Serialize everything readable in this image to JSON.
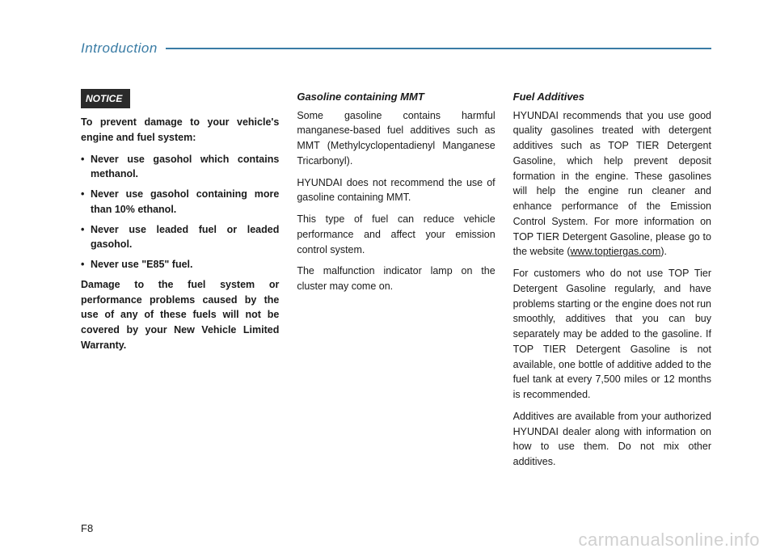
{
  "header": {
    "section_title": "Introduction"
  },
  "col1": {
    "notice_label": "NOTICE",
    "intro": "To prevent damage to your vehicle's engine and fuel system:",
    "bullets": [
      "Never use gasohol which contains methanol.",
      "Never use gasohol containing more than 10% ethanol.",
      "Never use leaded fuel or leaded gasohol.",
      "Never use \"E85\" fuel."
    ],
    "closing": "Damage to the fuel system or performance problems caused by the use of any of these fuels will not be covered by your New Vehicle Limited Warranty."
  },
  "col2": {
    "heading": "Gasoline containing MMT",
    "p1": "Some gasoline contains harmful manganese-based fuel additives such as MMT (Methylcyclopentadienyl Manganese Tricarbonyl).",
    "p2": "HYUNDAI does not recommend the use of gasoline containing MMT.",
    "p3": "This type of fuel can reduce vehicle performance  and affect your emission control system.",
    "p4": "The malfunction indicator lamp on the cluster may come on."
  },
  "col3": {
    "heading": "Fuel Additives",
    "p1_a": "HYUNDAI recommends that you use good quality gasolines treated with detergent additives such as TOP TIER Detergent Gasoline, which help prevent deposit formation in the engine. These gasolines will help the engine run cleaner and enhance performance of the Emission Control System. For more information on TOP TIER Detergent Gasoline, please go to the website (",
    "p1_link": "www.toptiergas.com",
    "p1_b": ").",
    "p2": "For customers who do not use TOP Tier Detergent Gasoline regularly, and have problems starting or the engine does not run smoothly, additives that you can buy separately may be added to the gasoline. If TOP TIER Detergent Gasoline is not available, one bottle of additive added to the fuel tank at every 7,500 miles or 12 months is recommended.",
    "p3": "Additives are available from your authorized HYUNDAI dealer along with information on how to use them. Do not mix other additives."
  },
  "page_number": "F8",
  "watermark": "carmanualsonline.info"
}
